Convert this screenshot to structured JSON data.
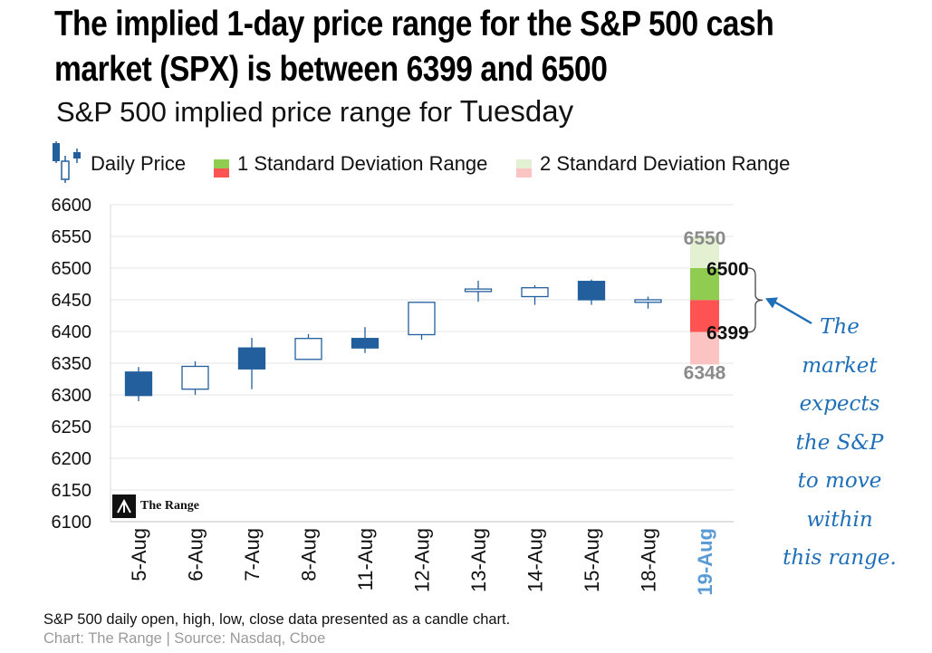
{
  "title_lines": [
    "The implied 1-day price range for the S&P 500 cash",
    "market (SPX) is between 6399 and 6500"
  ],
  "subtitle": {
    "prefix": "S&P 500 implied price range for",
    "day": "Tuesday"
  },
  "legend": {
    "daily_price": "Daily Price",
    "one_sd": "1 Standard Deviation Range",
    "two_sd": "2 Standard Deviation Range"
  },
  "colors": {
    "candle_blue": "#225f9c",
    "sd1_up": "#8fcc4f",
    "sd1_down": "#ff5353",
    "sd2_up": "#e3f1d2",
    "sd2_down": "#fcc3c3",
    "highlight_date": "#5b9bd5",
    "annotation": "#1f6fb8"
  },
  "annotation_lines": [
    "The",
    "market",
    "expects",
    "the S&P",
    "to move",
    "within",
    "this range."
  ],
  "footnote": "S&P 500 daily open, high, low, close data presented as a candle chart.",
  "credit": "Chart: The Range | Source: Nasdaq, Cboe",
  "logo_text": "The Range",
  "chart_data": {
    "type": "candlestick",
    "ylim": [
      6100,
      6600
    ],
    "yticks": [
      6100,
      6150,
      6200,
      6250,
      6300,
      6350,
      6400,
      6450,
      6500,
      6550,
      6600
    ],
    "categories": [
      "5-Aug",
      "6-Aug",
      "7-Aug",
      "8-Aug",
      "11-Aug",
      "12-Aug",
      "13-Aug",
      "14-Aug",
      "15-Aug",
      "18-Aug",
      "19-Aug"
    ],
    "candles": [
      {
        "date": "5-Aug",
        "open": 6336,
        "high": 6344,
        "low": 6290,
        "close": 6299
      },
      {
        "date": "6-Aug",
        "open": 6309,
        "high": 6353,
        "low": 6300,
        "close": 6345
      },
      {
        "date": "7-Aug",
        "open": 6374,
        "high": 6390,
        "low": 6309,
        "close": 6341
      },
      {
        "date": "8-Aug",
        "open": 6356,
        "high": 6396,
        "low": 6355,
        "close": 6389
      },
      {
        "date": "11-Aug",
        "open": 6389,
        "high": 6407,
        "low": 6366,
        "close": 6374
      },
      {
        "date": "12-Aug",
        "open": 6395,
        "high": 6447,
        "low": 6387,
        "close": 6446
      },
      {
        "date": "13-Aug",
        "open": 6463,
        "high": 6480,
        "low": 6447,
        "close": 6467
      },
      {
        "date": "14-Aug",
        "open": 6455,
        "high": 6473,
        "low": 6442,
        "close": 6469
      },
      {
        "date": "15-Aug",
        "open": 6479,
        "high": 6482,
        "low": 6442,
        "close": 6450
      },
      {
        "date": "18-Aug",
        "open": 6446,
        "high": 6455,
        "low": 6436,
        "close": 6450
      }
    ],
    "forecast": {
      "date": "19-Aug",
      "two_sd_high": 6550,
      "one_sd_high": 6500,
      "mid": 6449.5,
      "one_sd_low": 6399,
      "two_sd_low": 6348,
      "labels": {
        "two_sd_high": "6550",
        "one_sd_high": "6500",
        "one_sd_low": "6399",
        "two_sd_low": "6348"
      }
    },
    "grid": true,
    "legend_position": "top"
  }
}
